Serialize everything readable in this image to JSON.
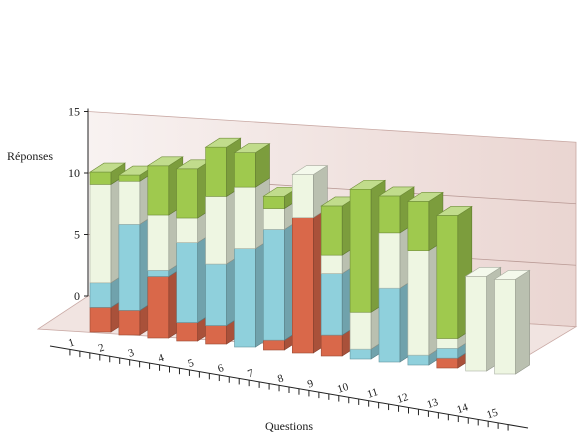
{
  "chart_data": {
    "type": "bar",
    "stacked": true,
    "three_d": true,
    "xlabel": "Questions",
    "ylabel": "Réponses",
    "ylim": [
      0,
      15
    ],
    "yticks": [
      "0",
      "5",
      "10",
      "15"
    ],
    "categories": [
      "1",
      "2",
      "3",
      "4",
      "5",
      "6",
      "7",
      "8",
      "9",
      "10",
      "11",
      "12",
      "13",
      "14",
      "15"
    ],
    "grid": true,
    "series_colors": [
      "#d9684a",
      "#8fd0dc",
      "#eef6e2",
      "#9fc94e"
    ],
    "series": [
      {
        "values": [
          2,
          2,
          5,
          1.5,
          1.5,
          0,
          0.8,
          11,
          1.7,
          0,
          0,
          0,
          0.8,
          0,
          0
        ]
      },
      {
        "values": [
          2,
          7,
          0.5,
          6.5,
          5,
          8,
          9,
          0,
          5,
          0.8,
          6,
          0.8,
          0.8,
          0,
          0
        ]
      },
      {
        "values": [
          8,
          3.5,
          4.5,
          2,
          5.5,
          5,
          1.7,
          3.5,
          1.5,
          3,
          4.5,
          8.5,
          0.8,
          7.7,
          7.7
        ]
      },
      {
        "values": [
          1,
          0.5,
          4,
          4,
          4,
          2.8,
          1,
          0,
          4,
          10,
          3,
          4,
          10,
          0,
          0
        ]
      }
    ]
  }
}
